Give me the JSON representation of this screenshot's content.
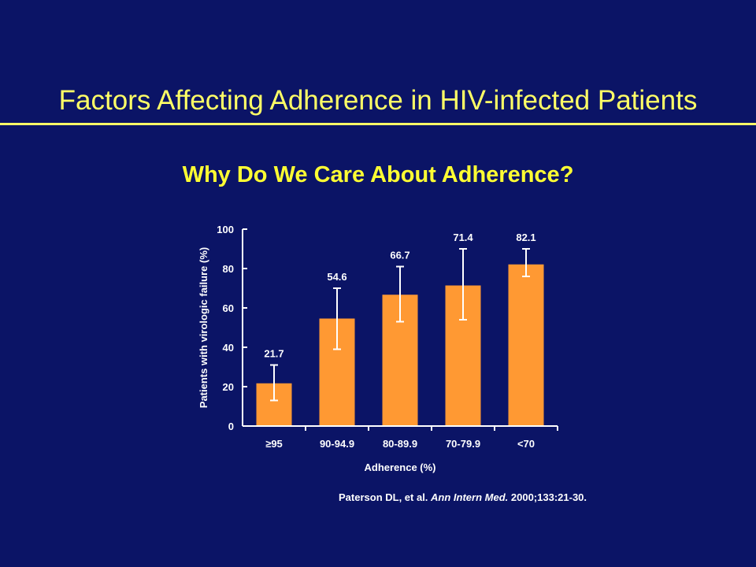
{
  "slide": {
    "title": "Factors Affecting Adherence in HIV-infected Patients"
  },
  "citation": {
    "authors": "Paterson DL, et al.",
    "journal": "Ann Intern Med.",
    "details": "2000;133:21-30."
  },
  "colors": {
    "background": "#0b1466",
    "slide_title": "#ffff66",
    "chart_title": "#ffff33",
    "bar": "#ff9933",
    "axis": "#ffffff"
  },
  "chart_data": {
    "type": "bar",
    "title": "Why Do We Care About Adherence?",
    "xlabel": "Adherence (%)",
    "ylabel": "Patients with virologic failure (%)",
    "categories": [
      "≥95",
      "90-94.9",
      "80-89.9",
      "70-79.9",
      "<70"
    ],
    "values": [
      21.7,
      54.6,
      66.7,
      71.4,
      82.1
    ],
    "value_labels": [
      "21.7",
      "54.6",
      "66.7",
      "71.4",
      "82.1"
    ],
    "error_low": [
      13,
      39,
      53,
      54,
      76
    ],
    "error_high": [
      31,
      70,
      81,
      90,
      90
    ],
    "ylim": [
      0,
      100
    ],
    "yticks": [
      0,
      20,
      40,
      60,
      80,
      100
    ],
    "grid": false,
    "legend": "none"
  }
}
